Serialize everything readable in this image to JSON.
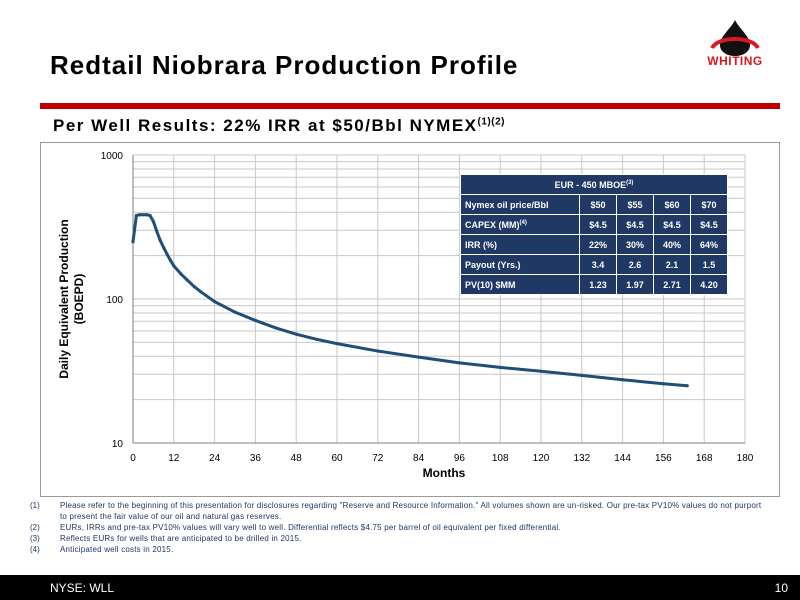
{
  "slide": {
    "title": "Redtail Niobrara Production Profile",
    "subtitle": "Per Well Results: 22% IRR at $50/Bbl NYMEX",
    "subtitle_sup": "(1)(2)",
    "logo_text": "WHITING",
    "footer_left": "NYSE: WLL",
    "page_number": "10",
    "colors": {
      "accent_red": "#c00000",
      "navy": "#1f3864",
      "curve": "#1f4e79"
    }
  },
  "eur_table": {
    "header": "EUR - 450 MBOE",
    "header_sup": "(3)",
    "rows": [
      {
        "label": "Nymex oil price/Bbl",
        "label_sup": "",
        "values": [
          "$50",
          "$55",
          "$60",
          "$70"
        ]
      },
      {
        "label": "CAPEX (MM)",
        "label_sup": "(4)",
        "values": [
          "$4.5",
          "$4.5",
          "$4.5",
          "$4.5"
        ]
      },
      {
        "label": "IRR (%)",
        "label_sup": "",
        "values": [
          "22%",
          "30%",
          "40%",
          "64%"
        ]
      },
      {
        "label": "Payout (Yrs.)",
        "label_sup": "",
        "values": [
          "3.4",
          "2.6",
          "2.1",
          "1.5"
        ]
      },
      {
        "label": "PV(10) $MM",
        "label_sup": "",
        "values": [
          "1.23",
          "1.97",
          "2.71",
          "4.20"
        ]
      }
    ]
  },
  "footnotes": [
    {
      "num": "(1)",
      "text": "Please refer to the beginning of this presentation for disclosures regarding \"Reserve and Resource Information.\"  All volumes shown are un-risked.  Our pre-tax PV10% values do not purport to present the fair value of our oil and natural gas reserves."
    },
    {
      "num": "(2)",
      "text": "EURs, IRRs and pre-tax PV10% values will vary well to well.  Differential reflects $4.75 per barrel of oil equivalent per fixed differential."
    },
    {
      "num": "(3)",
      "text": "Reflects EURs for wells that are anticipated to be drilled in 2015."
    },
    {
      "num": "(4)",
      "text": "Anticipated well costs in 2015."
    }
  ],
  "chart_data": {
    "type": "line",
    "title": "",
    "xlabel": "Months",
    "ylabel": "Daily Equivalent Production (BOEPD)",
    "xlim": [
      0,
      180
    ],
    "ylim": [
      10,
      1000
    ],
    "yscale": "log",
    "xticks": [
      0,
      12,
      24,
      36,
      48,
      60,
      72,
      84,
      96,
      108,
      120,
      132,
      144,
      156,
      168,
      180
    ],
    "yticks": [
      10,
      100,
      1000
    ],
    "ytick_labels": [
      "10",
      "100",
      "1000"
    ],
    "grid": true,
    "legend": "none",
    "series": [
      {
        "x": [
          0,
          1,
          2,
          3,
          4,
          5,
          6,
          7,
          8,
          9,
          10,
          11,
          12,
          14,
          16,
          18,
          20,
          24,
          30,
          36,
          42,
          48,
          54,
          60,
          72,
          84,
          96,
          108,
          120,
          132,
          144,
          156,
          163
        ],
        "y": [
          250,
          380,
          385,
          385,
          385,
          380,
          345,
          295,
          255,
          228,
          205,
          186,
          170,
          150,
          135,
          122,
          112,
          96,
          81,
          71,
          63,
          57,
          52.5,
          49,
          43.5,
          39.5,
          36,
          33.5,
          31.5,
          29.5,
          27.5,
          25.8,
          25
        ]
      }
    ]
  }
}
